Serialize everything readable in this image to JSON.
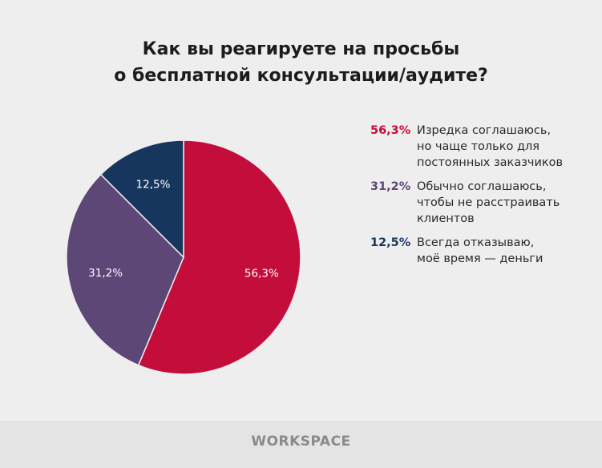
{
  "chart_data": {
    "type": "pie",
    "title": "Как вы реагируете на просьбы о бесплатной консультации/аудите?",
    "title_lines": [
      "Как вы реагируете на просьбы",
      "о бесплатной консультации/аудите?"
    ],
    "legend_position": "right",
    "slices": [
      {
        "value": 56.3,
        "label": "56,3%",
        "name": "Изредка соглашаюсь, но чаще только для постоянных заказчиков",
        "lines": [
          "Изредка соглашаюсь,",
          "но чаще только для",
          "постоянных заказчиков"
        ],
        "color": "#c30d3b"
      },
      {
        "value": 31.2,
        "label": "31,2%",
        "name": "Обычно соглашаюсь, чтобы не расстраивать клиентов",
        "lines": [
          "Обычно соглашаюсь,",
          "чтобы не расстраивать",
          "клиентов"
        ],
        "color": "#5d4777"
      },
      {
        "value": 12.5,
        "label": "12,5%",
        "name": "Всегда отказываю, моё время — деньги",
        "lines": [
          "Всегда отказываю,",
          "моё время — деньги"
        ],
        "color": "#17365e"
      }
    ],
    "start_angle": "12 o'clock",
    "direction": "clockwise"
  },
  "footer": {
    "logo": "WORKSPACE"
  }
}
